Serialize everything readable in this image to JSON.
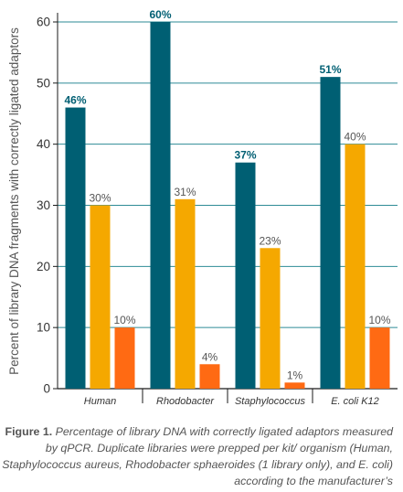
{
  "chart_data": {
    "type": "bar",
    "ylabel": "Percent of library DNA fragments with correctly ligated adaptors",
    "xlabel": "",
    "ylim": [
      0,
      60
    ],
    "yticks": [
      0,
      10,
      20,
      30,
      40,
      50,
      60
    ],
    "grid": true,
    "categories": [
      "Human",
      "Rhodobacter",
      "Staphylococcus",
      "E. coli K12"
    ],
    "series": [
      {
        "name": "",
        "color": "#005f73",
        "values": [
          46,
          60,
          37,
          51
        ],
        "labels": [
          "46%",
          "60%",
          "37%",
          "51%"
        ]
      },
      {
        "name": "",
        "color": "#f5a800",
        "values": [
          30,
          31,
          23,
          40
        ],
        "labels": [
          "30%",
          "31%",
          "23%",
          "40%"
        ]
      },
      {
        "name": "",
        "color": "#ff6a13",
        "values": [
          10,
          4,
          1,
          10
        ],
        "labels": [
          "10%",
          "4%",
          "1%",
          "10%"
        ]
      }
    ]
  },
  "caption": {
    "label": "Figure 1.",
    "text": " Percentage of library DNA with correctly ligated adaptors measured by qPCR. Duplicate libraries were prepped per kit/ organism (Human, Staphylococcus aureus, Rhodobacter sphaeroides (1 library only), and E. coli) according to the manufacturer’s"
  }
}
